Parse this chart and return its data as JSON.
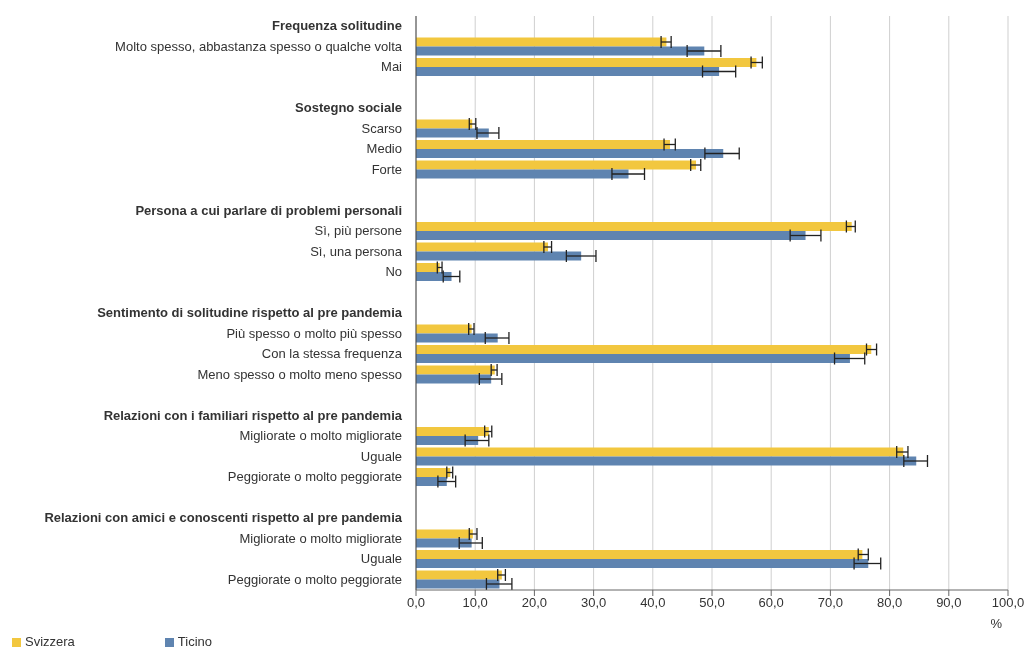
{
  "chart_data": {
    "type": "bar",
    "orientation": "horizontal",
    "xlabel": "%",
    "legend": "bottom left",
    "grid": "x",
    "categories": [
      "Frequenza solitudine",
      "Molto spesso, abbastanza spesso o qualche volta",
      "Mai",
      null,
      "Sostegno sociale",
      "Scarso",
      "Medio",
      "Forte",
      null,
      "Persona a cui parlare di problemi personali",
      "Sì, più persone",
      "Sì, una persona",
      "No",
      null,
      "Sentimento di solitudine rispetto al pre pandemia",
      "Più spesso o molto più spesso",
      "Con la stessa frequenza",
      "Meno spesso o molto meno spesso",
      null,
      "Relazioni con i familiari rispetto al pre pandemia",
      "Migliorate o molto migliorate",
      "Uguale",
      "Peggiorate o molto peggiorate",
      null,
      "Relazioni con amici e conoscenti rispetto al pre pandemia",
      "Migliorate o molto migliorate",
      "Uguale",
      "Peggiorate o molto peggiorate"
    ],
    "xlim": [
      0,
      100
    ],
    "xticks": [
      {
        "value": 0,
        "label": "0,0"
      },
      {
        "value": 10,
        "label": "10,0"
      },
      {
        "value": 20,
        "label": "20,0"
      },
      {
        "value": 30,
        "label": "30,0"
      },
      {
        "value": 40,
        "label": "40,0"
      },
      {
        "value": 50,
        "label": "50,0"
      },
      {
        "value": 60,
        "label": "60,0"
      },
      {
        "value": 70,
        "label": "70,0"
      },
      {
        "value": 80,
        "label": "80,0"
      },
      {
        "value": 90,
        "label": "90,0"
      },
      {
        "value": 100,
        "label": "100,0"
      }
    ],
    "series": [
      {
        "name": "Svizzera",
        "color": "#f2c73f",
        "values": [
          null,
          42.3,
          57.5,
          null,
          null,
          9.5,
          42.9,
          47.3,
          null,
          null,
          73.6,
          22.3,
          4.0,
          null,
          null,
          9.4,
          76.9,
          13.3,
          null,
          null,
          12.3,
          82.3,
          5.8,
          null,
          null,
          9.6,
          75.4,
          14.5
        ],
        "errors": [
          null,
          [
            41.4,
            43.1
          ],
          [
            56.6,
            58.5
          ],
          null,
          null,
          [
            9.0,
            10.1
          ],
          [
            41.9,
            43.8
          ],
          [
            46.4,
            48.1
          ],
          null,
          null,
          [
            72.7,
            74.2
          ],
          [
            21.6,
            22.9
          ],
          [
            3.6,
            4.4
          ],
          null,
          null,
          [
            8.9,
            9.8
          ],
          [
            76.1,
            77.8
          ],
          [
            12.7,
            13.7
          ],
          null,
          null,
          [
            11.6,
            12.8
          ],
          [
            81.2,
            83.1
          ],
          [
            5.2,
            6.2
          ],
          null,
          null,
          [
            9.0,
            10.3
          ],
          [
            74.7,
            76.4
          ],
          [
            13.8,
            15.1
          ]
        ]
      },
      {
        "name": "Ticino",
        "color": "#5f84b0",
        "values": [
          null,
          48.7,
          51.2,
          null,
          null,
          12.3,
          51.9,
          35.9,
          null,
          null,
          65.8,
          27.9,
          6.0,
          null,
          null,
          13.8,
          73.3,
          12.7,
          null,
          null,
          10.5,
          84.5,
          5.2,
          null,
          null,
          9.4,
          76.4,
          14.1
        ],
        "errors": [
          null,
          [
            45.8,
            51.5
          ],
          [
            48.4,
            54.0
          ],
          null,
          null,
          [
            10.3,
            14.0
          ],
          [
            48.8,
            54.6
          ],
          [
            33.1,
            38.6
          ],
          null,
          null,
          [
            63.2,
            68.4
          ],
          [
            25.4,
            30.4
          ],
          [
            4.6,
            7.4
          ],
          null,
          null,
          [
            11.7,
            15.7
          ],
          [
            70.7,
            75.8
          ],
          [
            10.7,
            14.5
          ],
          null,
          null,
          [
            8.3,
            12.3
          ],
          [
            82.4,
            86.4
          ],
          [
            3.7,
            6.7
          ],
          null,
          null,
          [
            7.3,
            11.2
          ],
          [
            74.0,
            78.5
          ],
          [
            11.9,
            16.2
          ]
        ]
      }
    ]
  }
}
